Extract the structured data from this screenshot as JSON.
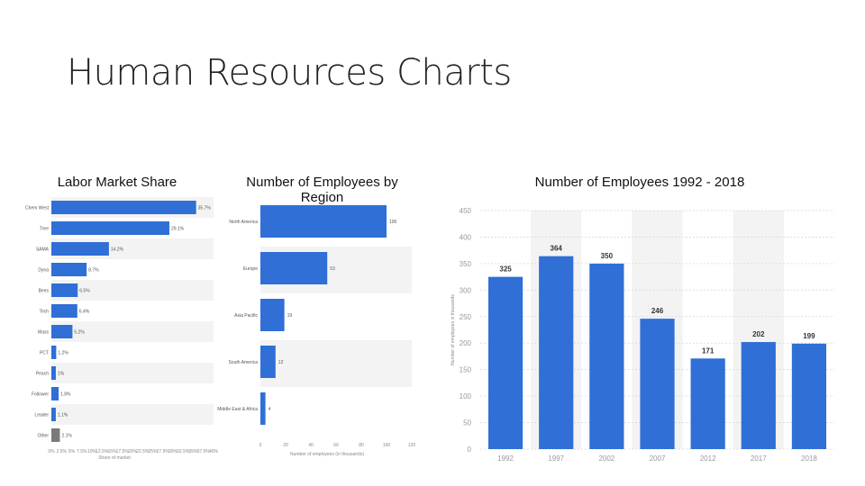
{
  "slide": {
    "title": "Human Resources Charts"
  },
  "chart_data": [
    {
      "type": "bar",
      "orientation": "horizontal",
      "title": "Labor Market Share",
      "categories": [
        "Other",
        "Leader",
        "Follower",
        "Peach",
        "PCT",
        "Mass",
        "Tech",
        "Bees",
        "Dyna",
        "SAMA",
        "Tree",
        "Chem West"
      ],
      "values": [
        2.1,
        1.1,
        1.8,
        1.1,
        1.2,
        5.2,
        6.4,
        6.5,
        8.7,
        14.2,
        29.1,
        35.7
      ],
      "value_labels": [
        "2.1%",
        "1.1%",
        "1.8%",
        "1%",
        "1.2%",
        "5.2%",
        "6.4%",
        "6.5%",
        "8.7%",
        "14.2%",
        "29.1%",
        "35.7%"
      ],
      "xlim": [
        0,
        40
      ],
      "xticks": [
        "0%",
        "2.5%",
        "5%",
        "7.5%",
        "10%",
        "12.5%",
        "15%",
        "17.5%",
        "20%",
        "22.5%",
        "25%",
        "27.5%",
        "30%",
        "32.5%",
        "35%",
        "37.5%",
        "40%"
      ],
      "xlabel": "Share of market",
      "colors": {
        "bar": "#2f6fd6",
        "last_bar": "#7a7a7a"
      }
    },
    {
      "type": "bar",
      "orientation": "horizontal",
      "title": "Number of Employees by Region",
      "categories": [
        "Middle East & Africa",
        "South America",
        "Asia Pacific",
        "Europe",
        "North America"
      ],
      "values": [
        4,
        12,
        19,
        53,
        100
      ],
      "value_labels": [
        "4",
        "12",
        "19",
        "53",
        "100"
      ],
      "xlim": [
        0,
        120
      ],
      "xticks": [
        "0",
        "20",
        "40",
        "60",
        "80",
        "100",
        "120"
      ],
      "xlabel": "Number of employees (in thousands)",
      "colors": {
        "bar": "#2f6fd6"
      }
    },
    {
      "type": "bar",
      "title": "Number of Employees 1992 - 2018",
      "categories": [
        "1992",
        "1997",
        "2002",
        "2007",
        "2012",
        "2017",
        "2018"
      ],
      "values": [
        325,
        364,
        350,
        246,
        171,
        202,
        199
      ],
      "ylim": [
        0,
        450
      ],
      "yticks": [
        "0",
        "50",
        "100",
        "150",
        "200",
        "250",
        "300",
        "350",
        "400",
        "450"
      ],
      "ylabel": "Number of employees in thousands",
      "colors": {
        "bar": "#2f6fd6"
      }
    }
  ]
}
